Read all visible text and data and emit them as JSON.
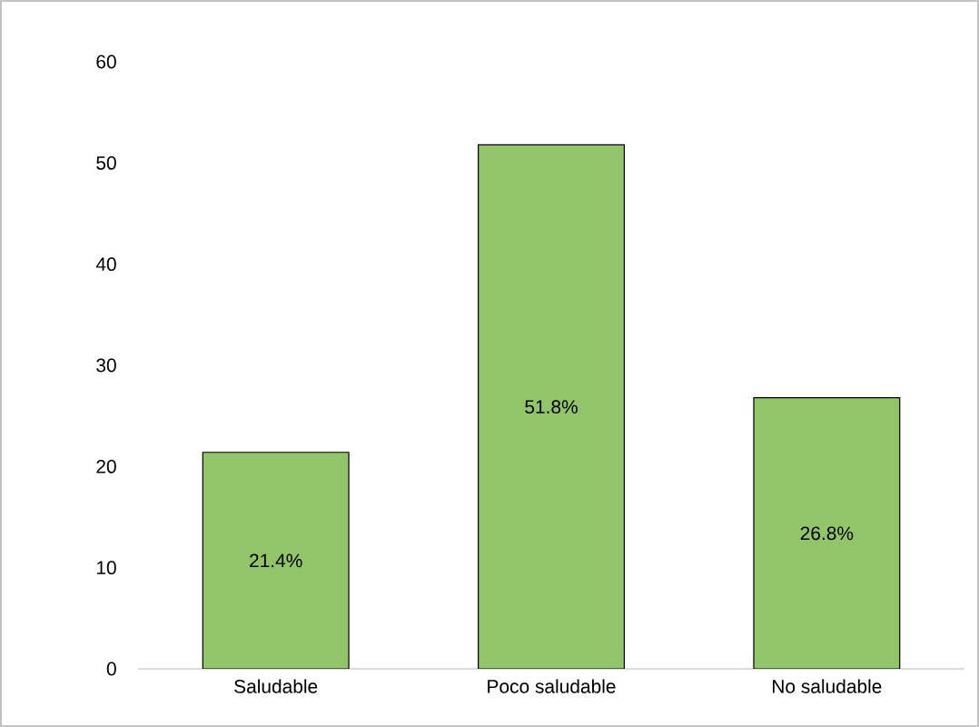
{
  "chart_data": {
    "type": "bar",
    "categories": [
      "Saludable",
      "Poco saludable",
      "No saludable"
    ],
    "values": [
      21.4,
      51.8,
      26.8
    ],
    "value_labels": [
      "21.4%",
      "51.8%",
      "26.8%"
    ],
    "color": "#92c46a",
    "ylim": [
      0,
      60
    ],
    "yticks": [
      0,
      10,
      20,
      30,
      40,
      50,
      60
    ],
    "grid": false
  }
}
